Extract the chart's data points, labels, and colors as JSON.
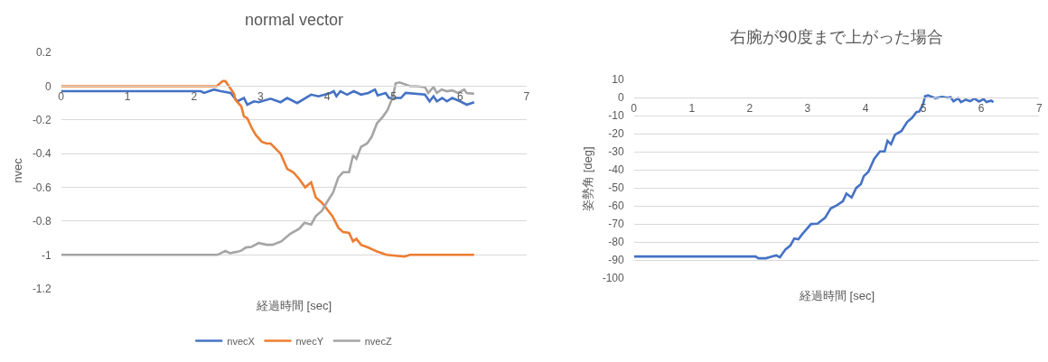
{
  "chart_data": [
    {
      "type": "line",
      "title": "normal vector",
      "xlabel": "経過時間 [sec]",
      "ylabel": "nvec",
      "xlim": [
        0,
        7
      ],
      "xticks": [
        0,
        1,
        2,
        3,
        4,
        5,
        6,
        7
      ],
      "ylim": [
        -1.2,
        0.2
      ],
      "yticks": [
        0.2,
        0,
        -0.2,
        -0.4,
        -0.6,
        -0.8,
        -1,
        -1.2
      ],
      "grid": "y",
      "legend": "bottom",
      "series": [
        {
          "name": "nvecX",
          "color": "#4472c4",
          "x": [
            0,
            2.1,
            2.15,
            2.3,
            2.4,
            2.55,
            2.65,
            2.75,
            2.8,
            2.9,
            2.97,
            3.15,
            3.3,
            3.4,
            3.55,
            3.76,
            3.87,
            4.05,
            4.1,
            4.14,
            4.2,
            4.3,
            4.4,
            4.51,
            4.62,
            4.72,
            4.76,
            4.88,
            4.93,
            5.11,
            5.18,
            5.47,
            5.54,
            5.6,
            5.65,
            5.73,
            5.8,
            5.88,
            6.0,
            6.1,
            6.21
          ],
          "values": [
            -0.03,
            -0.03,
            -0.04,
            -0.02,
            -0.03,
            -0.04,
            -0.09,
            -0.07,
            -0.11,
            -0.09,
            -0.095,
            -0.074,
            -0.095,
            -0.07,
            -0.1,
            -0.05,
            -0.06,
            -0.04,
            -0.03,
            -0.06,
            -0.03,
            -0.05,
            -0.03,
            -0.05,
            -0.04,
            -0.02,
            -0.055,
            -0.04,
            -0.07,
            -0.07,
            -0.04,
            -0.05,
            -0.09,
            -0.06,
            -0.09,
            -0.07,
            -0.09,
            -0.07,
            -0.09,
            -0.11,
            -0.095
          ]
        },
        {
          "name": "nvecY",
          "color": "#ed7d31",
          "x": [
            0,
            2.34,
            2.43,
            2.47,
            2.54,
            2.6,
            2.62,
            2.71,
            2.75,
            2.8,
            2.87,
            2.93,
            3.02,
            3.09,
            3.15,
            3.3,
            3.4,
            3.49,
            3.58,
            3.67,
            3.76,
            3.83,
            3.92,
            4.08,
            4.17,
            4.24,
            4.33,
            4.39,
            4.44,
            4.51,
            4.62,
            4.75,
            4.89,
            5.16,
            5.25,
            6.21
          ],
          "values": [
            0,
            0,
            0.03,
            0.03,
            -0.01,
            -0.045,
            -0.08,
            -0.12,
            -0.18,
            -0.19,
            -0.25,
            -0.29,
            -0.33,
            -0.34,
            -0.34,
            -0.4,
            -0.49,
            -0.51,
            -0.55,
            -0.6,
            -0.57,
            -0.66,
            -0.69,
            -0.77,
            -0.84,
            -0.865,
            -0.87,
            -0.92,
            -0.905,
            -0.94,
            -0.957,
            -0.98,
            -1.0,
            -1.01,
            -1.0,
            -1.0
          ]
        },
        {
          "name": "nvecZ",
          "color": "#a5a5a5",
          "x": [
            0,
            2.35,
            2.47,
            2.54,
            2.63,
            2.71,
            2.78,
            2.86,
            2.97,
            3.09,
            3.18,
            3.31,
            3.45,
            3.58,
            3.66,
            3.76,
            3.83,
            3.92,
            4.01,
            4.09,
            4.17,
            4.24,
            4.33,
            4.39,
            4.44,
            4.51,
            4.6,
            4.67,
            4.75,
            4.84,
            4.91,
            4.99,
            5.03,
            5.09,
            5.25,
            5.34,
            5.47,
            5.52,
            5.6,
            5.65,
            5.72,
            5.8,
            5.88,
            5.97,
            6.06,
            6.1,
            6.21
          ],
          "values": [
            -1,
            -1,
            -0.977,
            -0.99,
            -0.983,
            -0.975,
            -0.956,
            -0.953,
            -0.93,
            -0.94,
            -0.94,
            -0.92,
            -0.874,
            -0.845,
            -0.81,
            -0.82,
            -0.77,
            -0.74,
            -0.68,
            -0.63,
            -0.54,
            -0.51,
            -0.51,
            -0.41,
            -0.43,
            -0.36,
            -0.34,
            -0.3,
            -0.22,
            -0.18,
            -0.14,
            -0.06,
            0.017,
            0.022,
            0,
            0,
            -0.005,
            -0.04,
            -0.005,
            -0.04,
            -0.02,
            -0.03,
            -0.025,
            -0.04,
            -0.02,
            -0.04,
            -0.045
          ]
        }
      ]
    },
    {
      "type": "line",
      "title": "右腕が90度まで上がった場合",
      "xlabel": "経過時間 [sec]",
      "ylabel": "姿勢角 [deg]",
      "xlim": [
        0,
        7
      ],
      "xticks": [
        0,
        1,
        2,
        3,
        4,
        5,
        6,
        7
      ],
      "ylim": [
        -100,
        10
      ],
      "yticks": [
        10,
        0,
        -10,
        -20,
        -30,
        -40,
        -50,
        -60,
        -70,
        -80,
        -90,
        -100
      ],
      "grid": "y",
      "series": [
        {
          "color": "#4472c4",
          "x": [
            0,
            2.1,
            2.15,
            2.28,
            2.39,
            2.46,
            2.52,
            2.62,
            2.7,
            2.77,
            2.84,
            2.91,
            3.06,
            3.17,
            3.3,
            3.4,
            3.5,
            3.61,
            3.67,
            3.76,
            3.84,
            3.92,
            3.97,
            4.05,
            4.15,
            4.25,
            4.33,
            4.38,
            4.44,
            4.51,
            4.62,
            4.72,
            4.8,
            4.88,
            4.93,
            4.99,
            5.03,
            5.08,
            5.21,
            5.32,
            5.42,
            5.47,
            5.52,
            5.6,
            5.65,
            5.73,
            5.81,
            5.88,
            5.96,
            6.04,
            6.09,
            6.17,
            6.21
          ],
          "values": [
            -88,
            -88,
            -89,
            -89,
            -88,
            -87.4,
            -88.5,
            -84,
            -82,
            -78,
            -78.5,
            -75.5,
            -70,
            -69.8,
            -66.6,
            -61.3,
            -59.7,
            -57.3,
            -53.2,
            -55.3,
            -50,
            -47.9,
            -43.5,
            -41,
            -33.9,
            -29.8,
            -29.8,
            -23.9,
            -25.8,
            -20.5,
            -18.5,
            -13.4,
            -11.3,
            -8,
            -7.6,
            -4,
            0.8,
            1.3,
            -0.3,
            0.5,
            0,
            0.3,
            -2,
            -0.3,
            -2.4,
            -1.1,
            -1.9,
            -0.5,
            -2.1,
            -0.8,
            -2.4,
            -1.6,
            -2.4
          ]
        }
      ]
    }
  ]
}
